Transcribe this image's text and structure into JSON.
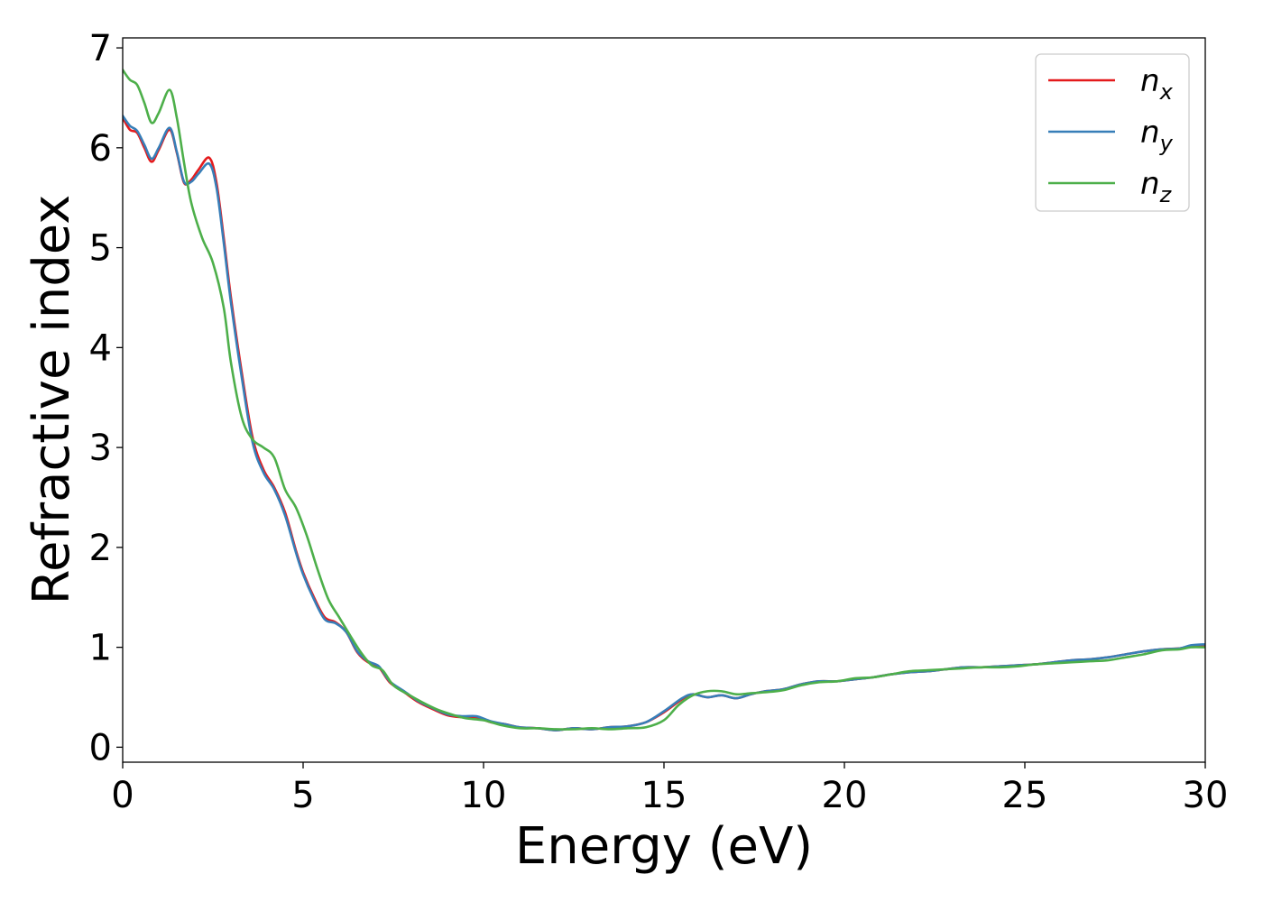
{
  "chart_data": {
    "type": "line",
    "xlabel": "Energy (eV)",
    "ylabel": "Refractive index",
    "xlim": [
      0,
      30
    ],
    "ylim": [
      -0.15,
      7.1
    ],
    "xticks": [
      0,
      5,
      10,
      15,
      20,
      25,
      30
    ],
    "xtick_labels": [
      "0",
      "5",
      "10",
      "15",
      "20",
      "25",
      "30"
    ],
    "yticks": [
      0,
      1,
      2,
      3,
      4,
      5,
      6,
      7
    ],
    "ytick_labels": [
      "0",
      "1",
      "2",
      "3",
      "4",
      "5",
      "6",
      "7"
    ],
    "grid": false,
    "legend_position": "top-right",
    "series": [
      {
        "name": "n_x",
        "label_base": "n",
        "label_sub": "x",
        "color": "#e41a1c",
        "x": [
          0,
          0.2,
          0.4,
          0.6,
          0.8,
          1.0,
          1.3,
          1.5,
          1.7,
          1.9,
          2.1,
          2.4,
          2.6,
          2.8,
          3.0,
          3.3,
          3.6,
          3.9,
          4.2,
          4.5,
          4.8,
          5.0,
          5.3,
          5.6,
          5.9,
          6.2,
          6.5,
          6.8,
          7.1,
          7.4,
          7.8,
          8.2,
          8.6,
          9.0,
          9.4,
          9.8,
          10.2,
          10.6,
          11.0,
          11.5,
          12.0,
          12.5,
          13.0,
          13.5,
          14.0,
          14.5,
          15.0,
          15.5,
          15.8,
          16.2,
          16.6,
          17.0,
          17.4,
          17.8,
          18.3,
          18.8,
          19.3,
          19.8,
          20.3,
          20.8,
          21.3,
          21.8,
          22.3,
          22.8,
          23.3,
          23.8,
          24.3,
          24.8,
          25.3,
          25.8,
          26.3,
          26.8,
          27.3,
          27.8,
          28.3,
          28.8,
          29.3,
          29.6,
          30.0
        ],
        "y": [
          6.3,
          6.18,
          6.15,
          6.0,
          5.86,
          5.98,
          6.18,
          5.95,
          5.65,
          5.68,
          5.78,
          5.9,
          5.65,
          5.1,
          4.5,
          3.75,
          3.1,
          2.78,
          2.6,
          2.35,
          1.97,
          1.75,
          1.5,
          1.3,
          1.25,
          1.15,
          0.95,
          0.85,
          0.8,
          0.65,
          0.55,
          0.45,
          0.38,
          0.32,
          0.3,
          0.3,
          0.25,
          0.23,
          0.2,
          0.19,
          0.17,
          0.19,
          0.18,
          0.2,
          0.21,
          0.25,
          0.35,
          0.48,
          0.53,
          0.5,
          0.52,
          0.49,
          0.53,
          0.56,
          0.58,
          0.63,
          0.66,
          0.66,
          0.68,
          0.7,
          0.73,
          0.75,
          0.76,
          0.78,
          0.8,
          0.8,
          0.81,
          0.82,
          0.83,
          0.85,
          0.87,
          0.88,
          0.9,
          0.93,
          0.96,
          0.98,
          0.99,
          1.01,
          1.02
        ]
      },
      {
        "name": "n_y",
        "label_base": "n",
        "label_sub": "y",
        "color": "#377eb8",
        "x": [
          0,
          0.2,
          0.4,
          0.6,
          0.8,
          1.0,
          1.3,
          1.5,
          1.7,
          1.9,
          2.1,
          2.4,
          2.6,
          2.8,
          3.0,
          3.3,
          3.6,
          3.9,
          4.2,
          4.5,
          4.8,
          5.0,
          5.3,
          5.6,
          5.9,
          6.2,
          6.5,
          6.8,
          7.1,
          7.4,
          7.8,
          8.2,
          8.6,
          9.0,
          9.4,
          9.8,
          10.2,
          10.6,
          11.0,
          11.5,
          12.0,
          12.5,
          13.0,
          13.5,
          14.0,
          14.5,
          15.0,
          15.5,
          15.8,
          16.2,
          16.6,
          17.0,
          17.4,
          17.8,
          18.3,
          18.8,
          19.3,
          19.8,
          20.3,
          20.8,
          21.3,
          21.8,
          22.3,
          22.8,
          23.3,
          23.8,
          24.3,
          24.8,
          25.3,
          25.8,
          26.3,
          26.8,
          27.3,
          27.8,
          28.3,
          28.8,
          29.3,
          29.6,
          30.0
        ],
        "y": [
          6.32,
          6.22,
          6.17,
          6.03,
          5.89,
          6.0,
          6.2,
          5.96,
          5.66,
          5.66,
          5.74,
          5.84,
          5.6,
          5.05,
          4.45,
          3.7,
          3.05,
          2.75,
          2.58,
          2.32,
          1.95,
          1.73,
          1.48,
          1.28,
          1.24,
          1.15,
          0.96,
          0.86,
          0.81,
          0.66,
          0.56,
          0.46,
          0.39,
          0.33,
          0.31,
          0.31,
          0.26,
          0.23,
          0.2,
          0.19,
          0.17,
          0.19,
          0.18,
          0.2,
          0.21,
          0.25,
          0.36,
          0.49,
          0.53,
          0.5,
          0.52,
          0.49,
          0.53,
          0.56,
          0.58,
          0.63,
          0.66,
          0.66,
          0.68,
          0.7,
          0.73,
          0.75,
          0.76,
          0.78,
          0.8,
          0.8,
          0.81,
          0.82,
          0.83,
          0.85,
          0.87,
          0.88,
          0.9,
          0.93,
          0.96,
          0.98,
          0.99,
          1.02,
          1.03
        ]
      },
      {
        "name": "n_z",
        "label_base": "n",
        "label_sub": "z",
        "color": "#4daf4a",
        "x": [
          0,
          0.2,
          0.4,
          0.6,
          0.8,
          1.0,
          1.3,
          1.5,
          1.7,
          1.9,
          2.2,
          2.5,
          2.8,
          3.0,
          3.3,
          3.6,
          3.9,
          4.2,
          4.5,
          4.8,
          5.1,
          5.4,
          5.7,
          6.0,
          6.3,
          6.6,
          6.9,
          7.2,
          7.5,
          7.9,
          8.3,
          8.7,
          9.1,
          9.5,
          10.0,
          10.5,
          11.0,
          11.5,
          12.0,
          12.5,
          13.0,
          13.5,
          14.0,
          14.5,
          15.0,
          15.4,
          15.8,
          16.2,
          16.6,
          17.0,
          17.4,
          17.8,
          18.3,
          18.8,
          19.3,
          19.8,
          20.3,
          20.8,
          21.3,
          21.8,
          22.3,
          22.8,
          23.3,
          23.8,
          24.3,
          24.8,
          25.3,
          25.8,
          26.3,
          26.8,
          27.3,
          27.8,
          28.3,
          28.8,
          29.3,
          29.6,
          30.0
        ],
        "y": [
          6.78,
          6.68,
          6.63,
          6.45,
          6.25,
          6.35,
          6.58,
          6.3,
          5.85,
          5.45,
          5.1,
          4.85,
          4.4,
          3.85,
          3.3,
          3.08,
          3.0,
          2.9,
          2.58,
          2.4,
          2.12,
          1.78,
          1.48,
          1.3,
          1.12,
          0.95,
          0.82,
          0.77,
          0.62,
          0.53,
          0.45,
          0.38,
          0.33,
          0.29,
          0.27,
          0.22,
          0.19,
          0.19,
          0.18,
          0.18,
          0.19,
          0.18,
          0.19,
          0.2,
          0.27,
          0.42,
          0.52,
          0.56,
          0.56,
          0.53,
          0.54,
          0.55,
          0.57,
          0.62,
          0.65,
          0.66,
          0.69,
          0.7,
          0.73,
          0.76,
          0.77,
          0.78,
          0.79,
          0.8,
          0.8,
          0.81,
          0.83,
          0.84,
          0.85,
          0.86,
          0.87,
          0.9,
          0.93,
          0.97,
          0.98,
          1.0,
          1.0
        ]
      }
    ]
  }
}
